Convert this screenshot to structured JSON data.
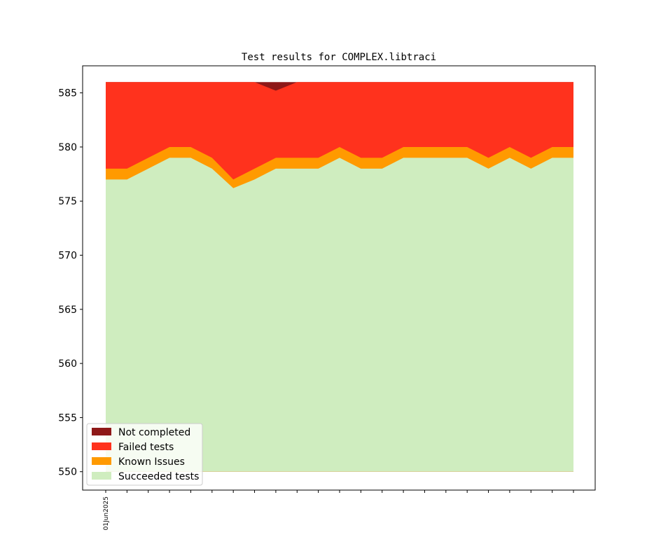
{
  "chart_data": {
    "type": "area",
    "title": "Test results for COMPLEX.libtraci",
    "xlabel": "",
    "ylabel": "",
    "ylim": [
      548.3,
      587.5
    ],
    "yticks": [
      550,
      555,
      560,
      565,
      570,
      575,
      580,
      585
    ],
    "x": [
      0,
      1,
      2,
      3,
      4,
      5,
      6,
      7,
      8,
      9,
      10,
      11,
      12,
      13,
      14,
      15,
      16,
      17,
      18,
      19,
      20,
      21,
      22
    ],
    "xtick_labels": [
      "01Jun2025",
      "",
      "",
      "",
      "",
      "",
      "",
      "",
      "",
      "",
      "",
      "",
      "",
      "",
      "",
      "",
      "",
      "",
      "",
      "",
      "",
      "",
      ""
    ],
    "baseline": 550,
    "stacked": true,
    "legend_position": "lower-left",
    "grid": false,
    "series": [
      {
        "name": "Succeeded tests",
        "color": "#cfedbf",
        "values": [
          577,
          577,
          578,
          579,
          579,
          578,
          576.2,
          577,
          578,
          578,
          578,
          579,
          578,
          578,
          579,
          579,
          579,
          579,
          578,
          579,
          578,
          579,
          579
        ]
      },
      {
        "name": "Known Issues",
        "color": "#ff9a00",
        "values": [
          578,
          578,
          579,
          580,
          580,
          579,
          577,
          578,
          579,
          579,
          579,
          580,
          579,
          579,
          580,
          580,
          580,
          580,
          579,
          580,
          579,
          580,
          580
        ]
      },
      {
        "name": "Failed tests",
        "color": "#ff321d",
        "values": [
          586,
          586,
          586,
          586,
          586,
          586,
          586,
          586,
          585.2,
          586,
          586,
          586,
          586,
          586,
          586,
          586,
          586,
          586,
          586,
          586,
          586,
          586,
          586
        ]
      },
      {
        "name": "Not completed",
        "color": "#8e1818",
        "values": [
          586,
          586,
          586,
          586,
          586,
          586,
          586,
          586,
          586,
          586,
          586,
          586,
          586,
          586,
          586,
          586,
          586,
          586,
          586,
          586,
          586,
          586,
          586
        ]
      }
    ],
    "legend": [
      "Not completed",
      "Failed tests",
      "Known Issues",
      "Succeeded tests"
    ]
  }
}
